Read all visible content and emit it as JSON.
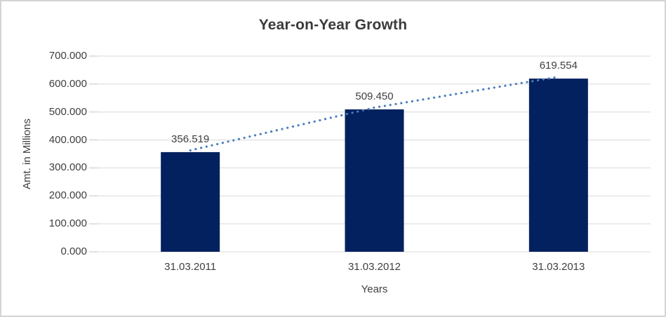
{
  "chart_data": {
    "type": "bar",
    "title": "Year-on-Year Growth",
    "xlabel": "Years",
    "ylabel": "Amt. in Millions",
    "categories": [
      "31.03.2011",
      "31.03.2012",
      "31.03.2013"
    ],
    "values": [
      356.519,
      509.45,
      619.554
    ],
    "data_labels": [
      "356.519",
      "509.450",
      "619.554"
    ],
    "ylim": [
      0,
      700
    ],
    "ytick_step": 100,
    "yticks": [
      {
        "value": 0,
        "label": "0.000"
      },
      {
        "value": 100,
        "label": "100.000"
      },
      {
        "value": 200,
        "label": "200.000"
      },
      {
        "value": 300,
        "label": "300.000"
      },
      {
        "value": 400,
        "label": "400.000"
      },
      {
        "value": 500,
        "label": "500.000"
      },
      {
        "value": 600,
        "label": "600.000"
      },
      {
        "value": 700,
        "label": "700.000"
      }
    ],
    "grid": "horizontal",
    "legend": "none",
    "trendline": {
      "style": "dotted",
      "through": "bar-tops",
      "color": "#4a7ebe"
    }
  },
  "colors": {
    "bar": "#03215f",
    "trendline": "#4a7ebe",
    "gridline": "#d9d9d9",
    "tick_mark": "#c6c6c6",
    "text": "#404040",
    "title_text": "#3a3a3a",
    "border": "#d4d4d4",
    "background": "#ffffff"
  }
}
